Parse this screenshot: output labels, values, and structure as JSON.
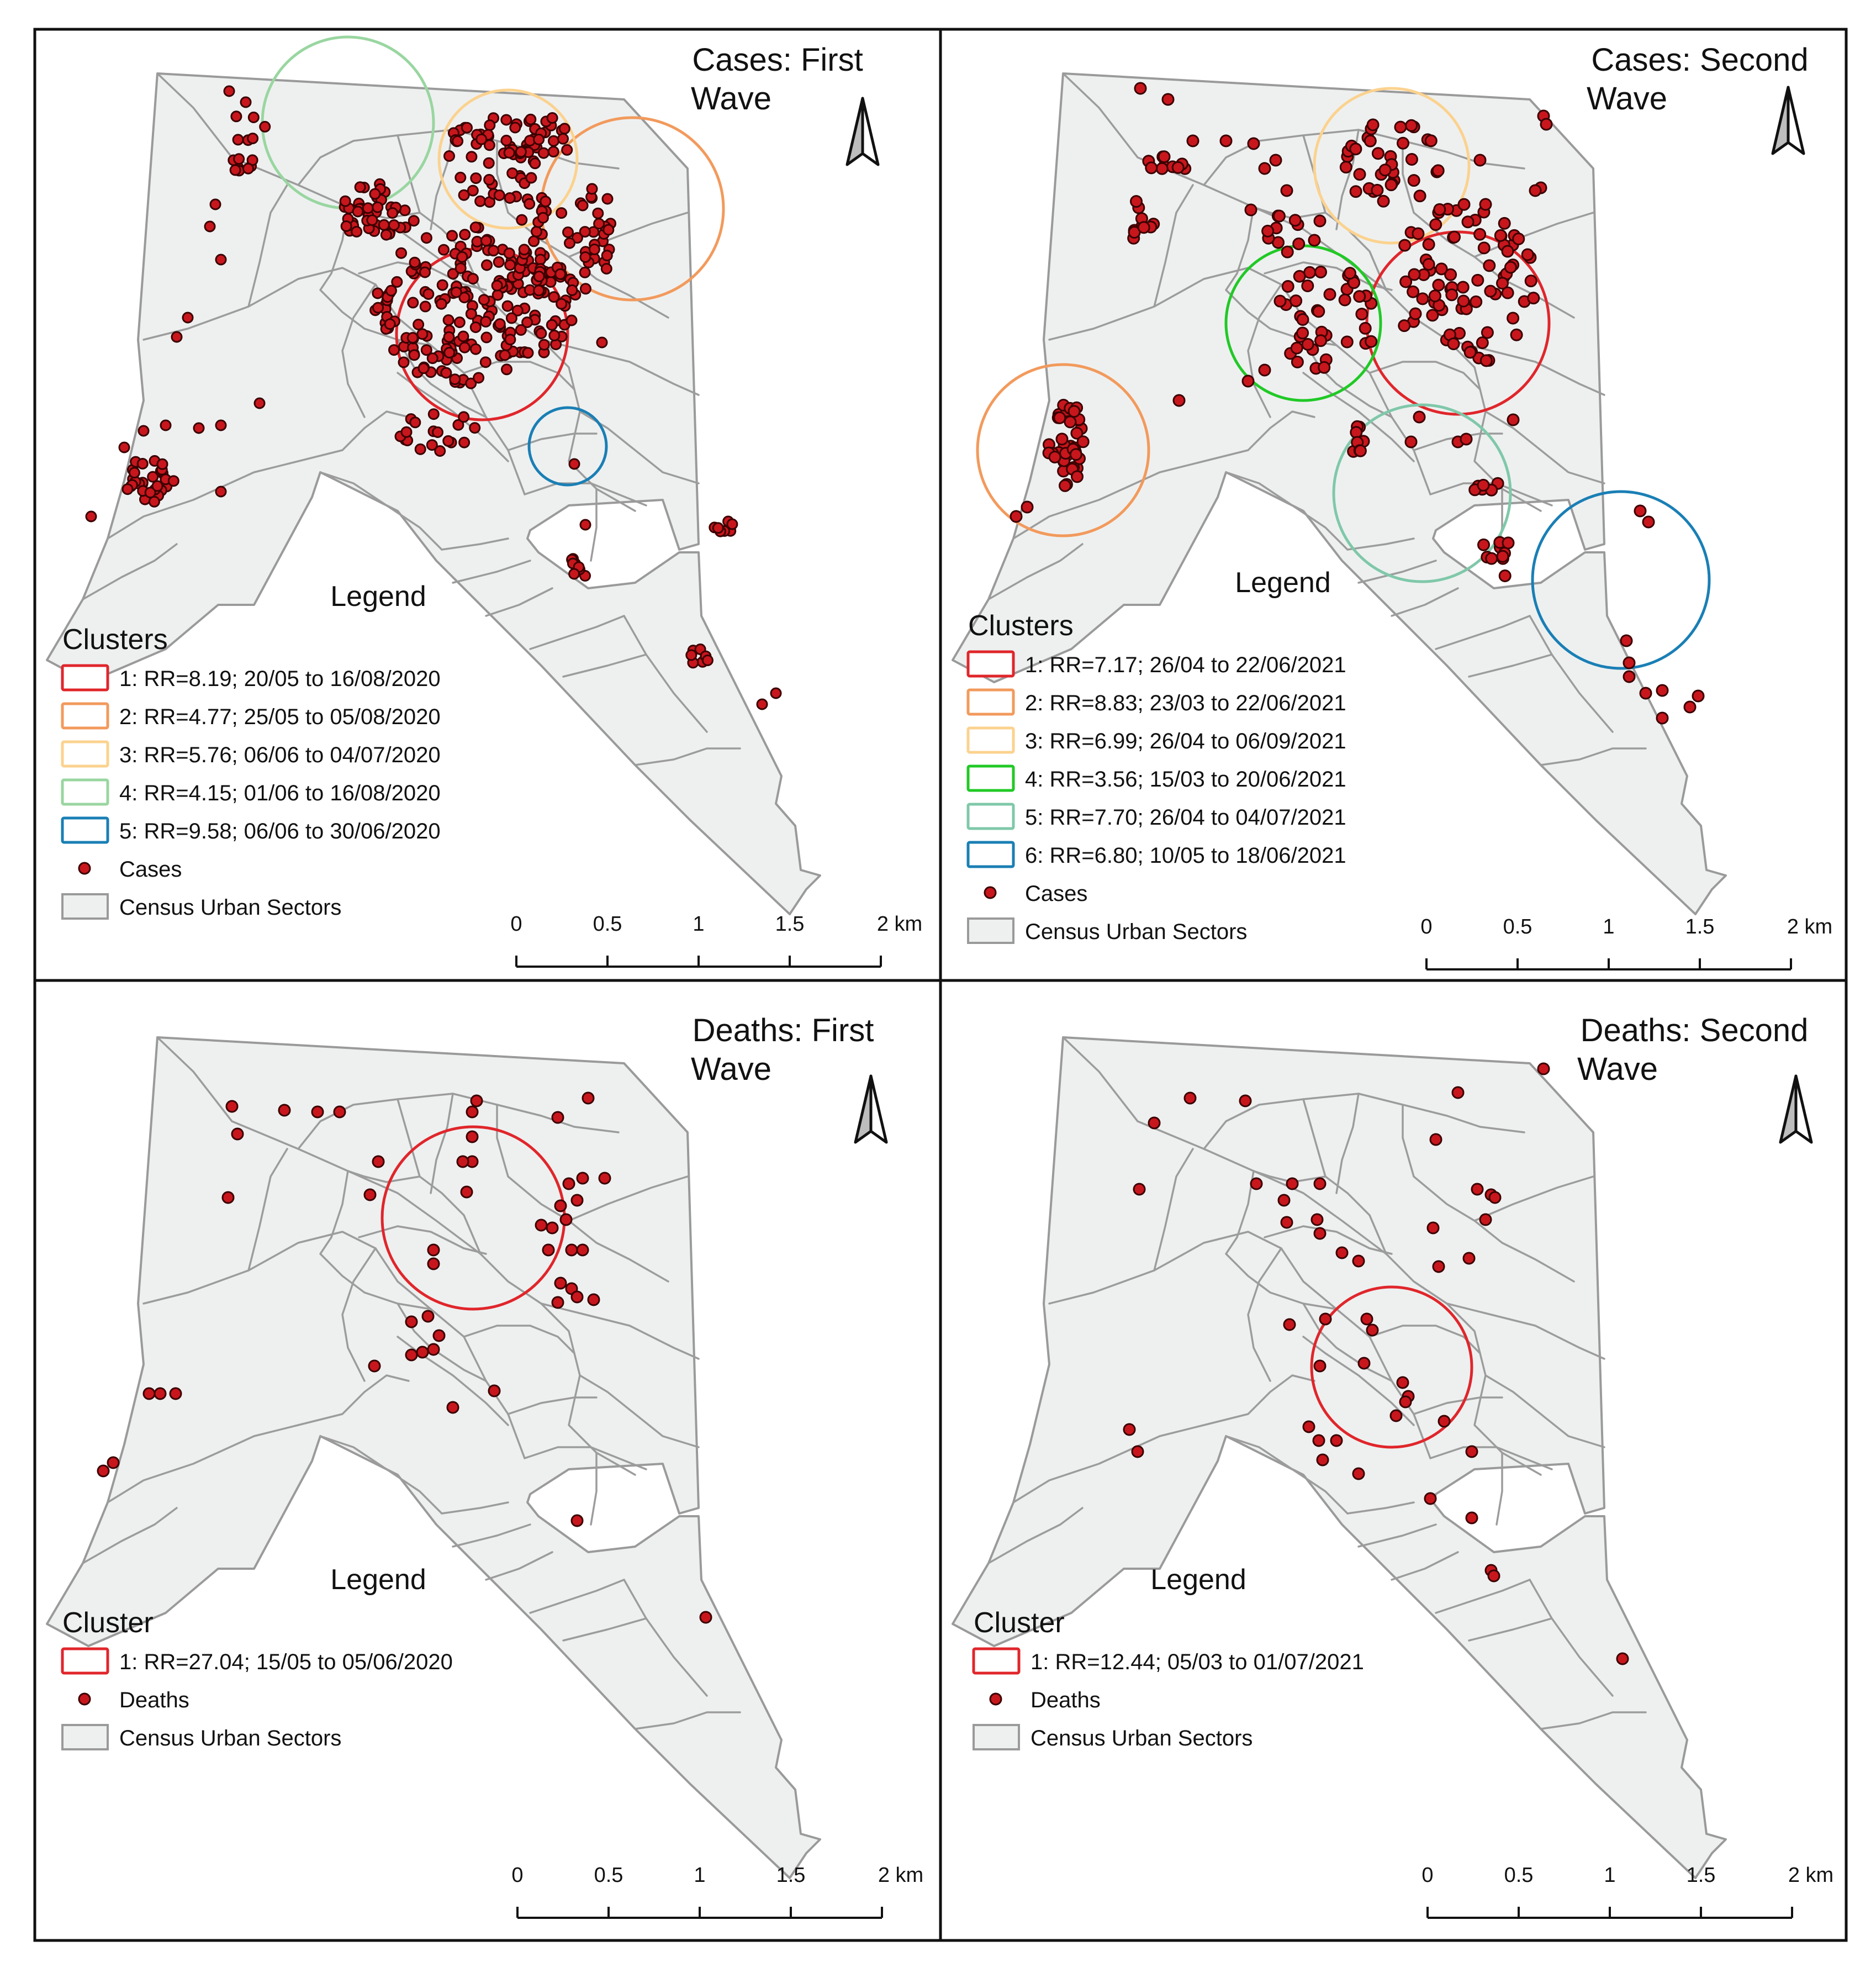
{
  "colors": {
    "point_fill": "#c8161d",
    "point_stroke": "#3a0000",
    "sector_fill": "#eef0f0",
    "sector_stroke": "#9a9a9a",
    "cluster_1": "#e0262b",
    "cluster_2": "#f29a5c",
    "cluster_3": "#fbd28e",
    "cluster_4_first": "#99d6a0",
    "cluster_4_second": "#21c926",
    "cluster_5_second": "#7fc8a9",
    "cluster_blue": "#1a7fb5"
  },
  "scale_bar": {
    "ticks": [
      "0",
      "0.5",
      "1",
      "1.5",
      "2 km"
    ]
  },
  "north_arrow_icon": "north-arrow-icon",
  "panels": [
    {
      "id": "cases-first",
      "title_line1": "Cases: First",
      "title_line2": "Wave",
      "legend_title": "Legend",
      "clusters_heading": "Clusters",
      "clusters": [
        {
          "label": "1: RR=8.19; 20/05 to 16/08/2020",
          "color": "#e0262b"
        },
        {
          "label": "2: RR=4.77; 25/05 to 05/08/2020",
          "color": "#f29a5c"
        },
        {
          "label": "3: RR=5.76; 06/06 to 04/07/2020",
          "color": "#fbd28e"
        },
        {
          "label": "4: RR=4.15; 01/06 to 16/08/2020",
          "color": "#99d6a0"
        },
        {
          "label": "5: RR=9.58; 06/06 to 30/06/2020",
          "color": "#1a7fb5"
        }
      ],
      "points_label": "Cases",
      "sectors_label": "Census Urban Sectors"
    },
    {
      "id": "cases-second",
      "title_line1": "Cases: Second",
      "title_line2": "Wave",
      "legend_title": "Legend",
      "clusters_heading": "Clusters",
      "clusters": [
        {
          "label": "1: RR=7.17; 26/04 to 22/06/2021",
          "color": "#e0262b"
        },
        {
          "label": "2: RR=8.83; 23/03 to 22/06/2021",
          "color": "#f29a5c"
        },
        {
          "label": "3: RR=6.99; 26/04 to 06/09/2021",
          "color": "#fbd28e"
        },
        {
          "label": "4: RR=3.56; 15/03 to 20/06/2021",
          "color": "#21c926"
        },
        {
          "label": "5: RR=7.70; 26/04 to 04/07/2021",
          "color": "#7fc8a9"
        },
        {
          "label": "6: RR=6.80; 10/05 to 18/06/2021",
          "color": "#1a7fb5"
        }
      ],
      "points_label": "Cases",
      "sectors_label": "Census Urban Sectors"
    },
    {
      "id": "deaths-first",
      "title_line1": "Deaths: First",
      "title_line2": "Wave",
      "legend_title": "Legend",
      "clusters_heading": "Cluster",
      "clusters": [
        {
          "label": "1: RR=27.04; 15/05 to 05/06/2020",
          "color": "#e0262b"
        }
      ],
      "points_label": "Deaths",
      "sectors_label": "Census Urban Sectors"
    },
    {
      "id": "deaths-second",
      "title_line1": "Deaths: Second",
      "title_line2": "Wave",
      "legend_title": "Legend",
      "clusters_heading": "Cluster",
      "clusters": [
        {
          "label": "1: RR=12.44; 05/03 to 01/07/2021",
          "color": "#e0262b"
        }
      ],
      "points_label": "Deaths",
      "sectors_label": "Census Urban Sectors"
    }
  ]
}
